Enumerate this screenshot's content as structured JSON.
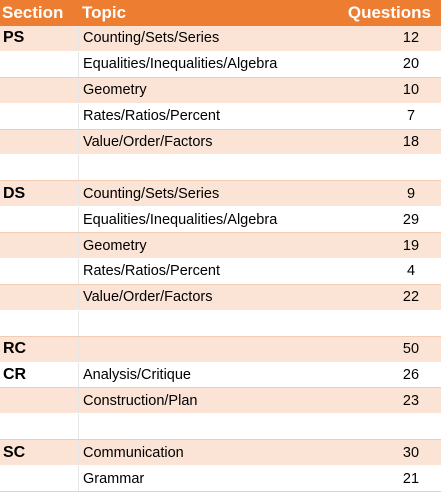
{
  "header": {
    "section": "Section",
    "topic": "Topic",
    "questions": "Questions"
  },
  "rows": [
    {
      "section": "PS",
      "topic": "Counting/Sets/Series",
      "questions": "12"
    },
    {
      "section": "",
      "topic": "Equalities/Inequalities/Algebra",
      "questions": "20"
    },
    {
      "section": "",
      "topic": "Geometry",
      "questions": "10"
    },
    {
      "section": "",
      "topic": "Rates/Ratios/Percent",
      "questions": "7"
    },
    {
      "section": "",
      "topic": "Value/Order/Factors",
      "questions": "18"
    },
    {
      "section": "",
      "topic": "",
      "questions": ""
    },
    {
      "section": "DS",
      "topic": "Counting/Sets/Series",
      "questions": "9"
    },
    {
      "section": "",
      "topic": "Equalities/Inequalities/Algebra",
      "questions": "29"
    },
    {
      "section": "",
      "topic": "Geometry",
      "questions": "19"
    },
    {
      "section": "",
      "topic": "Rates/Ratios/Percent",
      "questions": "4"
    },
    {
      "section": "",
      "topic": "Value/Order/Factors",
      "questions": "22"
    },
    {
      "section": "",
      "topic": "",
      "questions": ""
    },
    {
      "section": "RC",
      "topic": "",
      "questions": "50"
    },
    {
      "section": "CR",
      "topic": "Analysis/Critique",
      "questions": "26"
    },
    {
      "section": "",
      "topic": "Construction/Plan",
      "questions": "23"
    },
    {
      "section": "",
      "topic": "",
      "questions": ""
    },
    {
      "section": "SC",
      "topic": "Communication",
      "questions": "30"
    },
    {
      "section": "",
      "topic": "Grammar",
      "questions": "21"
    }
  ],
  "colors": {
    "header_bg": "#ed7d31",
    "band_bg": "#fbe4d5",
    "header_text": "#ffffff"
  }
}
